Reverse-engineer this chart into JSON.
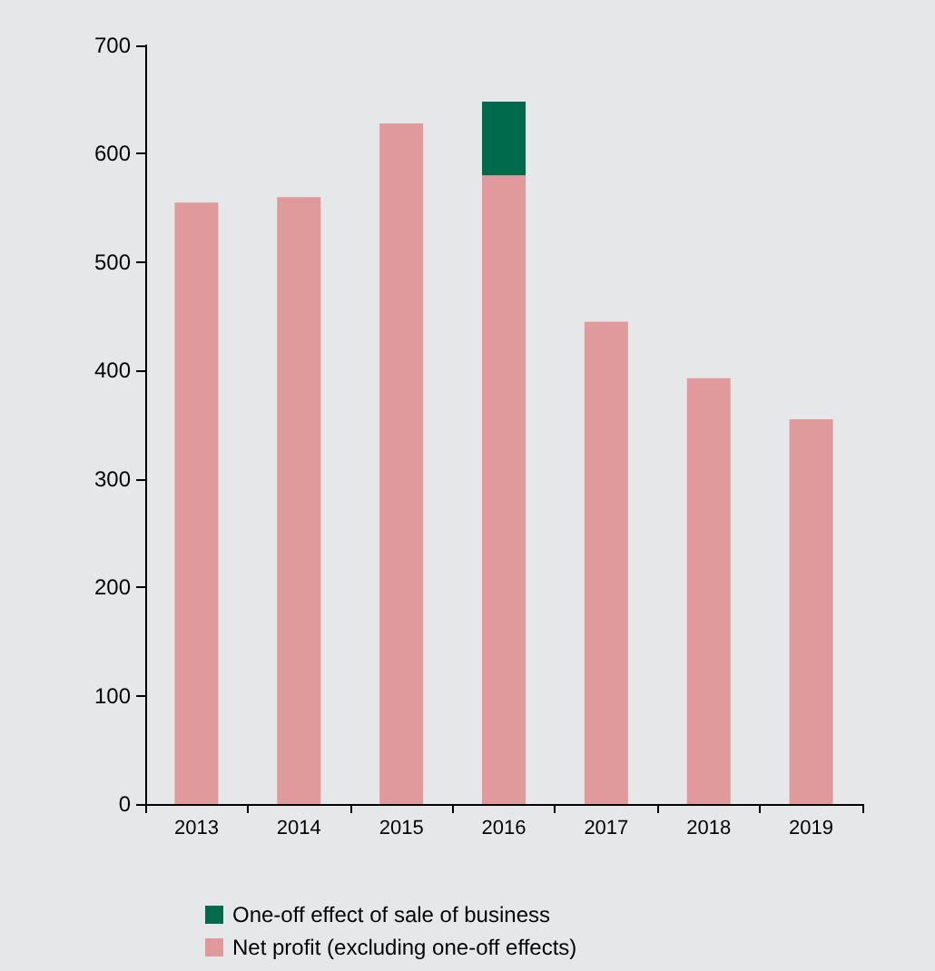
{
  "chart_data": {
    "type": "bar",
    "stacked": true,
    "categories": [
      "2013",
      "2014",
      "2015",
      "2016",
      "2017",
      "2018",
      "2019"
    ],
    "series": [
      {
        "name": "Net profit (excluding one-off effects)",
        "color": "#e09a9b",
        "values": [
          555,
          560,
          628,
          580,
          445,
          393,
          355
        ]
      },
      {
        "name": "One-off effect of sale of business",
        "color": "#006a4d",
        "values": [
          null,
          null,
          null,
          68,
          null,
          null,
          null
        ]
      }
    ],
    "ylim": [
      0,
      700
    ],
    "yticks": [
      0,
      100,
      200,
      300,
      400,
      500,
      600,
      700
    ],
    "grid": false,
    "legend": "bottom left"
  }
}
